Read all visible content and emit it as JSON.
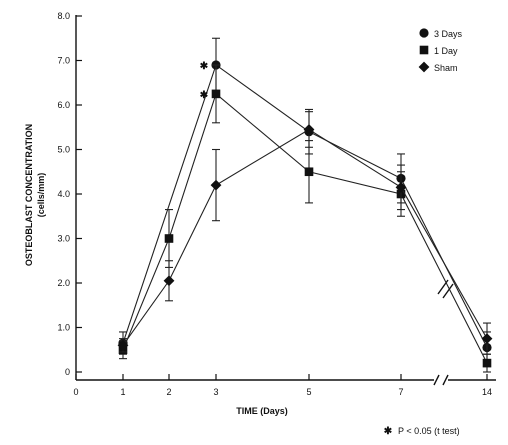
{
  "chart_data": {
    "type": "line",
    "title": "",
    "xlabel": "TIME (Days)",
    "ylabel": "OSTEOBLAST CONCENTRATION",
    "ylabel_units": "(cells/mm)",
    "x_ticks": [
      "0",
      "1",
      "2",
      "3",
      "5",
      "7",
      "14"
    ],
    "y_ticks": [
      "0",
      "1.0",
      "2.0",
      "3.0",
      "4.0",
      "5.0",
      "6.0",
      "7.0",
      "8.0"
    ],
    "ylim": [
      0,
      8
    ],
    "x_axis_break": "between 7 and 14",
    "x": [
      1,
      2,
      3,
      5,
      7,
      14
    ],
    "series": [
      {
        "name": "3 Days",
        "marker": "circle",
        "values": [
          0.65,
          null,
          6.9,
          5.4,
          4.35,
          0.55
        ],
        "errors": [
          0.25,
          null,
          0.6,
          0.5,
          0.55,
          0.35
        ]
      },
      {
        "name": "1 Day",
        "marker": "square",
        "values": [
          0.5,
          3.0,
          6.25,
          4.5,
          4.0,
          0.2
        ],
        "errors": [
          0.2,
          0.65,
          0.65,
          0.7,
          0.5,
          0.2
        ]
      },
      {
        "name": "Sham",
        "marker": "diamond",
        "values": [
          0.6,
          2.05,
          4.2,
          5.45,
          4.15,
          0.75
        ],
        "errors": [
          0.15,
          0.45,
          0.8,
          0.4,
          0.5,
          0.35
        ]
      }
    ],
    "significance": [
      {
        "x": 3,
        "series": "3 Days"
      },
      {
        "x": 3,
        "series": "1 Day"
      }
    ],
    "legend_position": "top-right",
    "footnote": "P < 0.05 (t test)",
    "grid": false
  }
}
